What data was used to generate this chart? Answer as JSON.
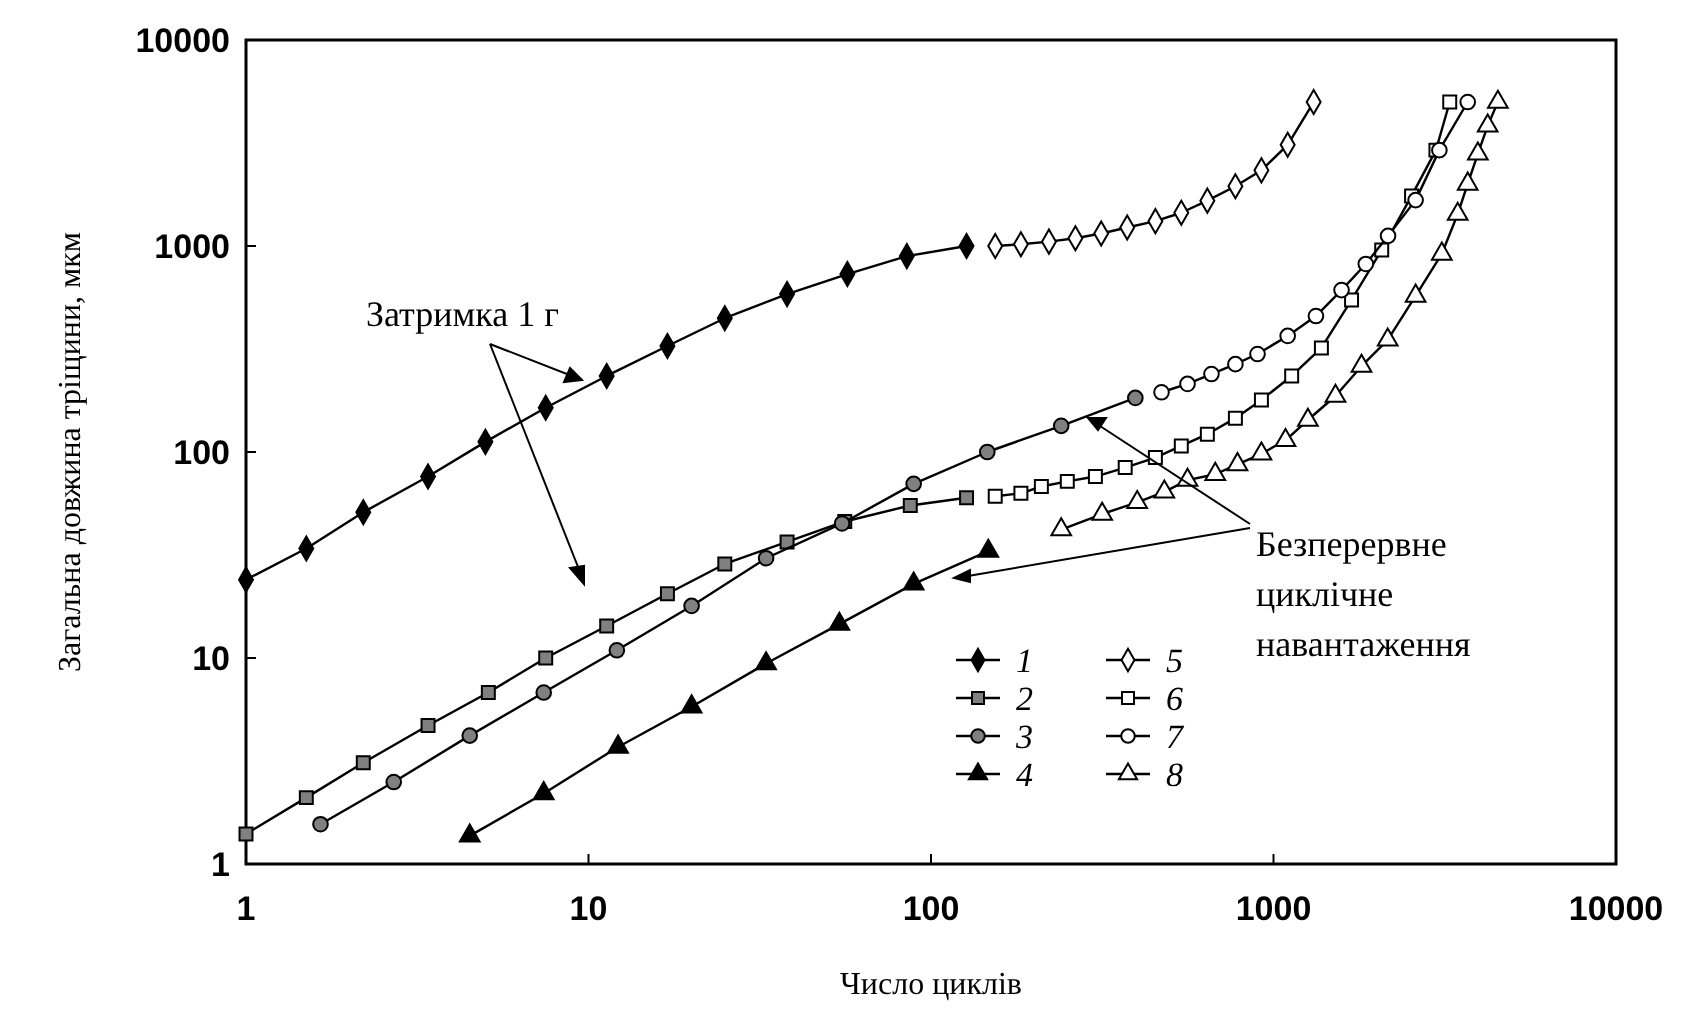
{
  "chart_data": {
    "type": "line",
    "xlabel": "Число циклів",
    "ylabel": "Загальна довжина тріщини, мкм",
    "log": "xy",
    "xlim": [
      1,
      10000
    ],
    "ylim": [
      1,
      10000
    ],
    "xticks": [
      1,
      10,
      100,
      1000,
      10000
    ],
    "yticks": [
      1,
      10,
      100,
      1000,
      10000
    ],
    "grid": false,
    "legend": "bottom right",
    "line_style": "solid",
    "annotations": [
      "Затримка 1 г",
      "Безперервне циклічне навантаження"
    ],
    "series": [
      {
        "name": "1",
        "color": "#000000",
        "marker": "diamond",
        "x": [
          1,
          1.5,
          2.2,
          3.4,
          5,
          7.5,
          11.3,
          17,
          25,
          38,
          57,
          85,
          127
        ],
        "values": [
          24,
          34,
          51,
          76,
          112,
          164,
          234,
          327,
          446,
          584,
          731,
          893,
          1000
        ]
      },
      {
        "name": "2",
        "color": "#808080",
        "marker": "square",
        "x": [
          1,
          1.5,
          2.2,
          3.4,
          5.1,
          7.5,
          11.3,
          17,
          25,
          38,
          56,
          87,
          127
        ],
        "values": [
          1.4,
          2.1,
          3.1,
          4.7,
          6.8,
          10,
          14.3,
          20.5,
          28.6,
          36.6,
          46,
          55,
          60
        ]
      },
      {
        "name": "3",
        "color": "#808080",
        "marker": "circle",
        "x": [
          1.65,
          2.7,
          4.5,
          7.4,
          12.1,
          20,
          33,
          55,
          89,
          146,
          240,
          395
        ],
        "values": [
          1.56,
          2.5,
          4.2,
          6.8,
          10.9,
          17.9,
          30.5,
          45,
          70,
          100,
          134,
          183
        ]
      },
      {
        "name": "4",
        "color": "#000000",
        "marker": "triangle",
        "x": [
          4.5,
          7.4,
          12.2,
          20,
          33,
          54,
          89,
          147
        ],
        "values": [
          1.37,
          2.2,
          3.7,
          5.8,
          9.4,
          14.6,
          22.9,
          33
        ]
      },
      {
        "name": "5",
        "color": "#ffffff",
        "marker": "diamond",
        "x": [
          154,
          183,
          221,
          264,
          314,
          374,
          452,
          538,
          641,
          774,
          922,
          1100,
          1310
        ],
        "values": [
          1000,
          1020,
          1050,
          1090,
          1150,
          1230,
          1320,
          1450,
          1660,
          1950,
          2330,
          3100,
          5000
        ]
      },
      {
        "name": "6",
        "color": "#ffffff",
        "marker": "square",
        "x": [
          154,
          183,
          210,
          250,
          302,
          369,
          452,
          538,
          641,
          774,
          922,
          1130,
          1380,
          1690,
          2070,
          2530,
          2980,
          3270
        ],
        "values": [
          61,
          63,
          68,
          72,
          76,
          84,
          94,
          107,
          122,
          146,
          179,
          234,
          320,
          547,
          957,
          1750,
          2920,
          5000
        ]
      },
      {
        "name": "7",
        "color": "#ffffff",
        "marker": "circle",
        "x": [
          471,
          561,
          659,
          774,
          898,
          1100,
          1330,
          1580,
          1860,
          2160,
          2600,
          3050,
          3690
        ],
        "values": [
          195,
          214,
          239,
          267,
          299,
          366,
          457,
          611,
          818,
          1120,
          1670,
          2920,
          5000
        ]
      },
      {
        "name": "8",
        "color": "#ffffff",
        "marker": "triangle",
        "x": [
          240,
          316,
          400,
          480,
          561,
          676,
          785,
          922,
          1084,
          1260,
          1517,
          1807,
          2155,
          2600,
          3100,
          3450,
          3690,
          3950,
          4220,
          4520
        ],
        "values": [
          42,
          50,
          57,
          64,
          73,
          78,
          87,
          98,
          114,
          143,
          187,
          261,
          350,
          572,
          915,
          1430,
          2000,
          2800,
          3830,
          5000
        ]
      }
    ]
  }
}
